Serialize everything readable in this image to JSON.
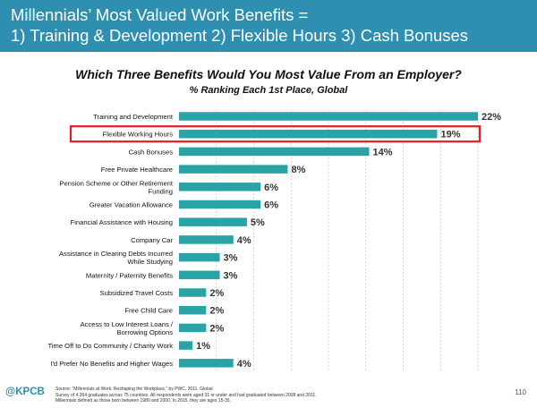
{
  "header": {
    "line1": "Millennials’ Most Valued Work Benefits =",
    "line2": "1) Training & Development  2) Flexible Hours  3) Cash Bonuses"
  },
  "colors": {
    "header_bg": "#2f8fb1",
    "bar": "#2aa3a7",
    "highlight": "#e02020"
  },
  "chart_data": {
    "type": "bar",
    "orientation": "horizontal",
    "title": "Which Three Benefits Would You Most Value From an Employer?",
    "subtitle": "% Ranking Each 1st Place, Global",
    "categories": [
      "Training and Development",
      "Flexible Working Hours",
      "Cash Bonuses",
      "Free Private Healthcare",
      "Pension Scheme or Other Retirement Funding",
      "Greater Vacation Allowance",
      "Financial Assistance with Housing",
      "Company Car",
      "Assistance in Clearing Debts Incurred While Studying",
      "Maternity / Paternity Benefits",
      "Subsidized Travel Costs",
      "Free Child Care",
      "Access to Low Interest Loans / Borrowing Options",
      "Time Off to Do Community / Charity Work",
      "I'd Prefer No Benefits and Higher Wages"
    ],
    "category_lines": [
      [
        "Training and Development"
      ],
      [
        "Flexible Working Hours"
      ],
      [
        "Cash Bonuses"
      ],
      [
        "Free Private Healthcare"
      ],
      [
        "Pension Scheme or Other Retirement",
        "Funding"
      ],
      [
        "Greater Vacation Allowance"
      ],
      [
        "Financial Assistance with Housing"
      ],
      [
        "Company Car"
      ],
      [
        "Assistance in Clearing Debts Incurred",
        "While Studying"
      ],
      [
        "Maternity / Paternity Benefits"
      ],
      [
        "Subsidized Travel Costs"
      ],
      [
        "Free Child Care"
      ],
      [
        "Access to Low Interest Loans /",
        "Borrowing Options"
      ],
      [
        "Time Off to Do Community / Charity Work"
      ],
      [
        "I'd Prefer No Benefits and Higher Wages"
      ]
    ],
    "values": [
      22,
      19,
      14,
      8,
      6,
      6,
      5,
      4,
      3,
      3,
      2,
      2,
      2,
      1,
      4
    ],
    "value_labels": [
      "22%",
      "19%",
      "14%",
      "8%",
      "6%",
      "6%",
      "5%",
      "4%",
      "3%",
      "3%",
      "2%",
      "2%",
      "2%",
      "1%",
      "4%"
    ],
    "highlighted_category": "Flexible Working Hours",
    "xlim": [
      0,
      22
    ],
    "gridlines": "dashed vertical"
  },
  "footer": {
    "logo": "@KPCB",
    "source_lines": [
      "Source: “Millennials at Work: Reshaping the Workplace,” by PWC, 2011. Global",
      "Survey of 4,364 graduates across  75 countries. All respondents were aged 31 or under and had graduated between 2008 and 2011.",
      "Millennials defined as those born between 1980 and 2000. In 2015, they are ages 15-35."
    ],
    "page_number": "110"
  }
}
